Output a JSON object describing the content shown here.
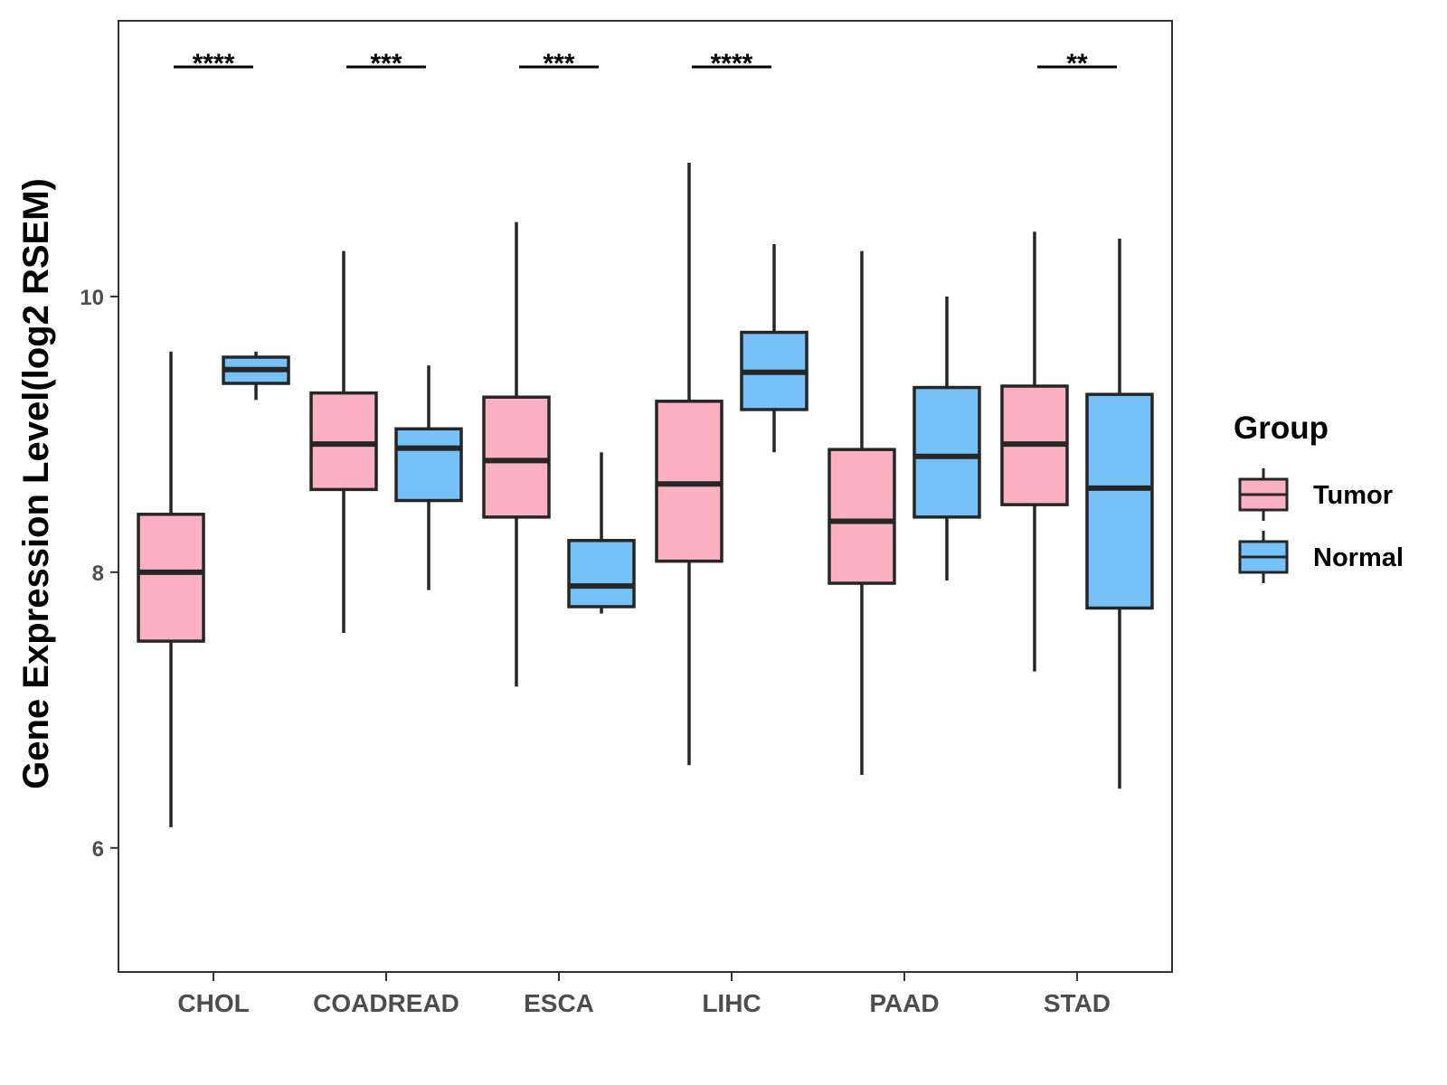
{
  "chart_data": {
    "type": "boxplot",
    "ylabel": "Gene Expression Level(log2 RSEM)",
    "xlabel": "",
    "ylim": [
      5.1,
      12.0
    ],
    "yticks": [
      6,
      8,
      10
    ],
    "categories": [
      "CHOL",
      "COADREAD",
      "ESCA",
      "LIHC",
      "PAAD",
      "STAD"
    ],
    "legend": {
      "title": "Group",
      "position": "right"
    },
    "series": [
      {
        "name": "Tumor",
        "color": "#FBB1C2",
        "boxes": [
          {
            "min": 6.15,
            "q1": 7.5,
            "median": 8.0,
            "q3": 8.42,
            "max": 9.6
          },
          {
            "min": 7.56,
            "q1": 8.6,
            "median": 8.93,
            "q3": 9.3,
            "max": 10.33
          },
          {
            "min": 7.17,
            "q1": 8.4,
            "median": 8.81,
            "q3": 9.27,
            "max": 10.54
          },
          {
            "min": 6.6,
            "q1": 8.08,
            "median": 8.64,
            "q3": 9.24,
            "max": 10.97
          },
          {
            "min": 6.53,
            "q1": 7.92,
            "median": 8.37,
            "q3": 8.89,
            "max": 10.33
          },
          {
            "min": 7.28,
            "q1": 8.49,
            "median": 8.93,
            "q3": 9.35,
            "max": 10.47
          }
        ]
      },
      {
        "name": "Normal",
        "color": "#76C1F8",
        "boxes": [
          {
            "min": 9.25,
            "q1": 9.37,
            "median": 9.47,
            "q3": 9.56,
            "max": 9.6
          },
          {
            "min": 7.87,
            "q1": 8.52,
            "median": 8.9,
            "q3": 9.04,
            "max": 9.5
          },
          {
            "min": 7.7,
            "q1": 7.75,
            "median": 7.9,
            "q3": 8.23,
            "max": 8.87
          },
          {
            "min": 8.87,
            "q1": 9.18,
            "median": 9.45,
            "q3": 9.74,
            "max": 10.38
          },
          {
            "min": 7.94,
            "q1": 8.4,
            "median": 8.84,
            "q3": 9.34,
            "max": 10.0
          },
          {
            "min": 6.43,
            "q1": 7.74,
            "median": 8.61,
            "q3": 9.29,
            "max": 10.42
          }
        ]
      }
    ],
    "significance": [
      {
        "category": "CHOL",
        "label": "****"
      },
      {
        "category": "COADREAD",
        "label": "***"
      },
      {
        "category": "ESCA",
        "label": "***"
      },
      {
        "category": "LIHC",
        "label": "****"
      },
      {
        "category": "PAAD",
        "label": ""
      },
      {
        "category": "STAD",
        "label": "**"
      }
    ]
  }
}
